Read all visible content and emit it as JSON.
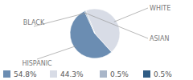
{
  "chart_data": {
    "type": "pie",
    "categories": [
      "HISPANIC",
      "WHITE",
      "BLACK",
      "ASIAN"
    ],
    "values": [
      54.8,
      44.3,
      0.5,
      0.5
    ],
    "value_labels": [
      "54.8%",
      "44.3%",
      "0.5%",
      "0.5%"
    ],
    "colors": [
      "#6b8db2",
      "#d8dce6",
      "#a9b6c9",
      "#2f5c84"
    ],
    "legend": "bottom"
  }
}
